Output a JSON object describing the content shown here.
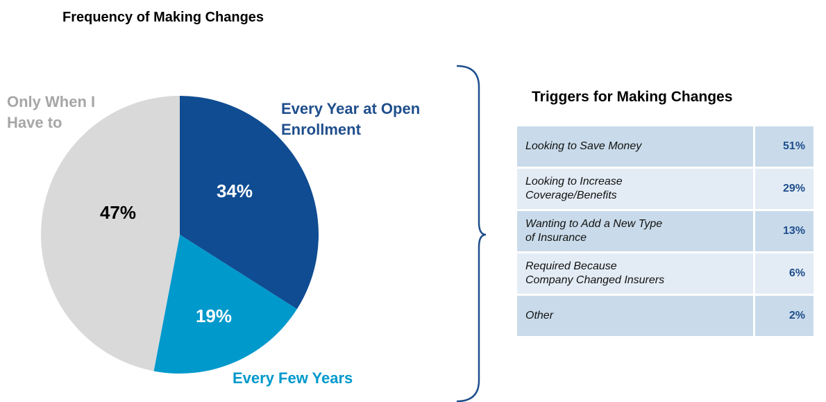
{
  "chart_data": {
    "type": "pie",
    "title": "Frequency of Making Changes",
    "categories": [
      "Every Year at Open Enrollment",
      "Every Few Years",
      "Only When I Have to"
    ],
    "values": [
      34,
      19,
      47
    ],
    "value_labels": [
      "34%",
      "19%",
      "47%"
    ],
    "colors": [
      "#0f4c92",
      "#0099cc",
      "#d9d9d9"
    ]
  },
  "table": {
    "title": "Triggers for Making Changes",
    "rows": [
      [
        [
          "Looking to Save Money"
        ],
        "51%"
      ],
      [
        [
          "Looking to Increase",
          "Coverage/Benefits"
        ],
        "29%"
      ],
      [
        [
          "Wanting to Add a New Type",
          "of Insurance"
        ],
        "13%"
      ],
      [
        [
          "Required Because",
          "Company Changed Insurers"
        ],
        "6%"
      ],
      [
        [
          "Other"
        ],
        "2%"
      ]
    ]
  }
}
